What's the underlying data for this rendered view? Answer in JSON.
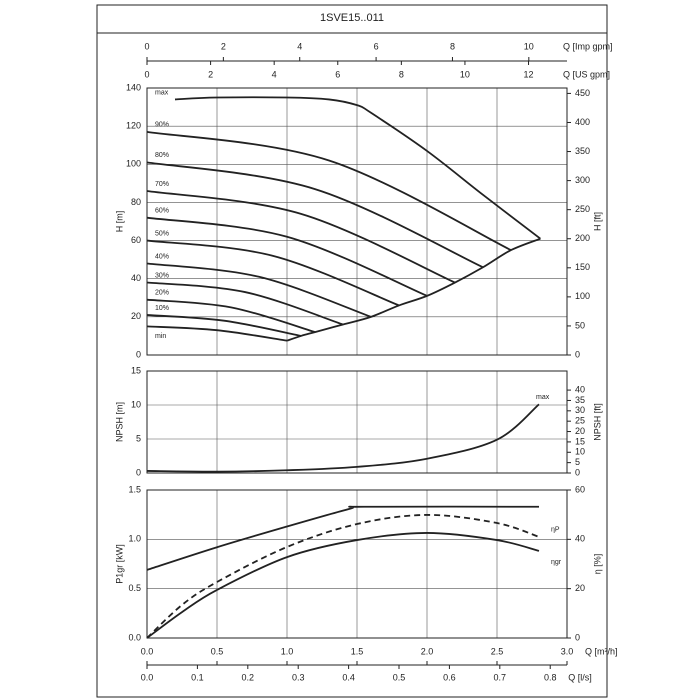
{
  "title": "1SVE15..011",
  "q_axes": [
    {
      "label": "Q [Imp gpm]",
      "position": "top",
      "xlim": [
        0,
        11.0
      ],
      "xticks": [
        0,
        2,
        4,
        6,
        8,
        10
      ]
    },
    {
      "label": "Q [US gpm]",
      "position": "top",
      "xlim": [
        0,
        13.21
      ],
      "xticks": [
        0,
        2,
        4,
        6,
        8,
        10,
        12
      ]
    },
    {
      "label": "Q [m³/h]",
      "position": "bottom",
      "grid": true,
      "xlim": [
        0,
        3
      ],
      "xticks": [
        {
          "value": 0,
          "label": "0.0"
        },
        0.5,
        {
          "value": 1,
          "label": "1.0"
        },
        1.5,
        {
          "value": 2,
          "label": "2.0"
        },
        2.5,
        {
          "value": 3,
          "label": "3.0"
        }
      ]
    },
    {
      "label": "Q [l/s]",
      "position": "bottom",
      "xlim": [
        0,
        0.8333
      ],
      "xticks": [
        {
          "value": 0,
          "label": "0.0"
        },
        0.1,
        0.2,
        0.3,
        0.4,
        0.5,
        0.6,
        0.7,
        0.8
      ]
    }
  ],
  "chart_data": [
    {
      "type": "line",
      "ylabel": "H [m]",
      "y2label": "H [ft]",
      "ylim": [
        0,
        140
      ],
      "yticks": [
        0,
        20,
        40,
        60,
        80,
        100,
        120,
        140
      ],
      "y2lim": [
        0,
        459.3
      ],
      "y2ticks": [
        0,
        50,
        100,
        150,
        200,
        250,
        300,
        350,
        400,
        450
      ],
      "grid": true,
      "labels": "start",
      "series": [
        {
          "name": "max",
          "color": "#222",
          "x": [
            0.2,
            0.5,
            1.0,
            1.3,
            1.5,
            1.6,
            2.0,
            2.4,
            2.81
          ],
          "values": [
            134,
            135,
            135,
            134,
            131,
            127,
            107,
            84,
            61
          ]
        },
        {
          "name": "90%",
          "color": "#222",
          "x": [
            0,
            1.3,
            2.6
          ],
          "values": [
            117,
            102,
            55
          ]
        },
        {
          "name": "80%",
          "color": "#222",
          "x": [
            0,
            1.2,
            2.4
          ],
          "values": [
            101,
            87,
            46
          ]
        },
        {
          "name": "70%",
          "color": "#222",
          "x": [
            0,
            1.1,
            2.2
          ],
          "values": [
            86,
            74,
            38
          ]
        },
        {
          "name": "60%",
          "color": "#222",
          "x": [
            0,
            1.0,
            2.0
          ],
          "values": [
            72,
            62,
            31
          ]
        },
        {
          "name": "50%",
          "color": "#222",
          "x": [
            0,
            0.9,
            1.8
          ],
          "values": [
            60,
            52,
            26
          ]
        },
        {
          "name": "40%",
          "color": "#222",
          "x": [
            0,
            0.8,
            1.6
          ],
          "values": [
            48,
            41,
            20
          ]
        },
        {
          "name": "30%",
          "color": "#222",
          "x": [
            0,
            0.7,
            1.4
          ],
          "values": [
            38,
            33,
            16
          ]
        },
        {
          "name": "20%",
          "color": "#222",
          "x": [
            0,
            0.6,
            1.2
          ],
          "values": [
            29,
            25,
            12
          ]
        },
        {
          "name": "10%",
          "color": "#222",
          "x": [
            0,
            0.55,
            1.1
          ],
          "values": [
            21,
            18,
            10
          ]
        },
        {
          "name": "min",
          "color": "#222",
          "label_side": "below",
          "x": [
            0,
            0.5,
            1.0
          ],
          "values": [
            15,
            13,
            7.5
          ]
        },
        {
          "color": "#222",
          "x": [
            1.0,
            1.1,
            1.2,
            1.4,
            1.6,
            1.8,
            2.0,
            2.2,
            2.4,
            2.6,
            2.81
          ],
          "values": [
            7.5,
            10,
            12,
            16,
            20,
            26,
            31,
            38,
            46,
            55,
            61
          ]
        }
      ]
    },
    {
      "type": "line",
      "ylabel": "NPSH [m]",
      "y2label": "NPSH [ft]",
      "ylim": [
        0,
        15
      ],
      "yticks": [
        0,
        5,
        10,
        15
      ],
      "y2lim": [
        0,
        49.21
      ],
      "y2ticks": [
        0,
        5,
        10,
        15,
        20,
        25,
        30,
        35,
        40
      ],
      "grid": true,
      "labels": "end",
      "series": [
        {
          "name": "max",
          "color": "#222",
          "x": [
            0,
            0.5,
            1.0,
            1.5,
            2.0,
            2.5,
            2.8
          ],
          "values": [
            0.3,
            0.2,
            0.4,
            0.9,
            2.1,
            4.9,
            10.1
          ]
        }
      ]
    },
    {
      "type": "line",
      "ylabel": "P1gr [kW]",
      "y2label": "η [%]",
      "ylim": [
        0,
        1.5
      ],
      "yticks": [
        {
          "value": 0,
          "label": "0.0"
        },
        0.5,
        {
          "value": 1,
          "label": "1.0"
        },
        1.5
      ],
      "y2lim": [
        0,
        60
      ],
      "y2ticks": [
        0,
        20,
        40,
        60
      ],
      "grid": true,
      "labels": "end",
      "series": [
        {
          "color": "#222",
          "x": [
            0,
            0.5,
            1.0,
            1.45,
            1.55,
            2.8
          ],
          "values": [
            0.69,
            0.92,
            1.13,
            1.31,
            1.33,
            1.33
          ]
        },
        {
          "name": "ηP",
          "color": "#222",
          "axis": "y2",
          "style": "dashed",
          "x": [
            0,
            0.25,
            0.5,
            1.0,
            1.5,
            2.0,
            2.5,
            2.8
          ],
          "values": [
            0,
            13.4,
            22.7,
            36.9,
            46.2,
            49.9,
            46.6,
            41
          ]
        },
        {
          "name": "ηgr",
          "color": "#222",
          "axis": "y2",
          "label_side": "below",
          "x": [
            0,
            0.25,
            0.5,
            1.0,
            1.5,
            2.0,
            2.5,
            2.8
          ],
          "values": [
            0,
            10.5,
            19.5,
            32.8,
            39.7,
            42.6,
            39.7,
            35.3
          ]
        }
      ]
    }
  ]
}
